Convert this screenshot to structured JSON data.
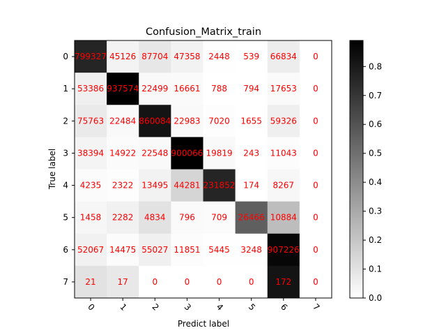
{
  "chart_data": {
    "type": "heatmap",
    "title": "Confusion_Matrix_train",
    "xlabel": "Predict label",
    "ylabel": "True label",
    "x_categories": [
      "0",
      "1",
      "2",
      "3",
      "4",
      "5",
      "6",
      "7"
    ],
    "y_categories": [
      "0",
      "1",
      "2",
      "3",
      "4",
      "5",
      "6",
      "7"
    ],
    "matrix": [
      [
        799327,
        45126,
        87704,
        47358,
        2448,
        539,
        66834,
        0
      ],
      [
        53386,
        937574,
        22499,
        16661,
        788,
        794,
        17653,
        0
      ],
      [
        75763,
        22484,
        860084,
        22983,
        7020,
        1655,
        59326,
        0
      ],
      [
        38394,
        14922,
        22548,
        900066,
        19819,
        243,
        11043,
        0
      ],
      [
        4235,
        2322,
        13495,
        44281,
        231852,
        174,
        8267,
        0
      ],
      [
        1458,
        2282,
        4834,
        796,
        709,
        26466,
        10884,
        0
      ],
      [
        52067,
        14475,
        55027,
        11851,
        5445,
        3248,
        907226,
        0
      ],
      [
        21,
        17,
        0,
        0,
        0,
        0,
        172,
        0
      ]
    ],
    "normalized": true,
    "colormap": "Greys",
    "colorbar": {
      "range": [
        0.0,
        0.89
      ],
      "ticks": [
        "0.0",
        "0.1",
        "0.2",
        "0.3",
        "0.4",
        "0.5",
        "0.6",
        "0.7",
        "0.8"
      ]
    },
    "cell_label_color": "#ff0000",
    "x_tick_rotation": 45
  }
}
